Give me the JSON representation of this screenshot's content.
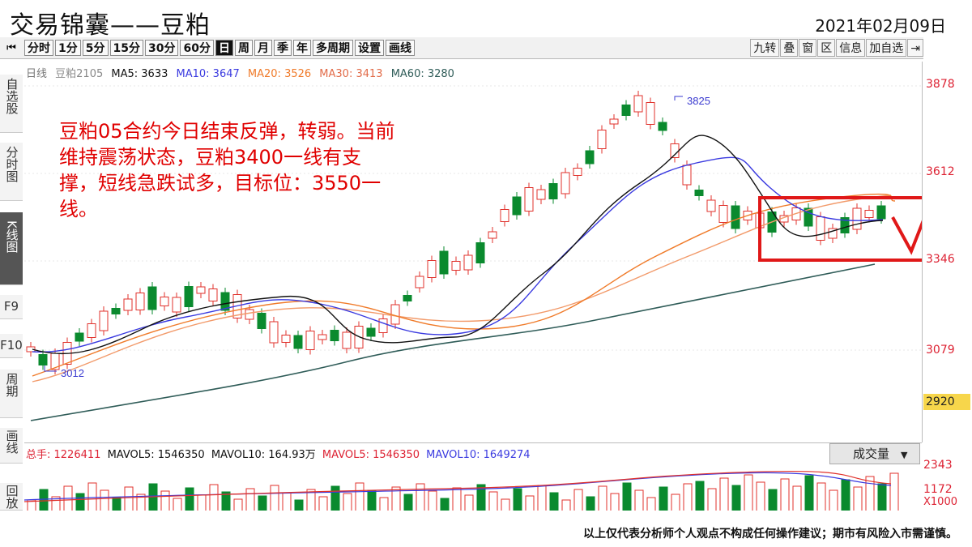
{
  "header": {
    "title": "交易锦囊——豆粕",
    "date": "2021年02月09日"
  },
  "toolbar": {
    "periods": [
      "分时",
      "1分",
      "5分",
      "15分",
      "30分",
      "60分",
      "日",
      "周",
      "月",
      "季",
      "年",
      "多周期",
      "设置",
      "画线"
    ],
    "active_period": "日",
    "right_buttons": [
      "九转",
      "叠",
      "窗",
      "区",
      "信息",
      "加自选"
    ]
  },
  "left_tabs": [
    "自选股",
    "分时图",
    "K线图",
    "F9",
    "F10",
    "周期",
    "画线",
    "回放"
  ],
  "ma_line": {
    "period": "日线",
    "symbol": "豆粕2105",
    "ma5": "MA5: 3633",
    "ma10": "MA10: 3647",
    "ma20": "MA20: 3526",
    "ma30": "MA30: 3413",
    "ma60": "MA60: 3280"
  },
  "annotation": "豆粕05合约今日结束反弹，转弱。当前维持震荡状态，豆粕3400一线有支撑，短线急跌试多，目标位：3550一线。",
  "price_axis": {
    "top": "3878",
    "mid1": "3612",
    "mid2": "3346",
    "low": "3079",
    "current": "2920"
  },
  "marks": {
    "high": "3825",
    "low": "3012"
  },
  "volume": {
    "zongshou": "总手: 1226411",
    "mavol5a": "MAVOL5: 1546350",
    "mavol10a": "MAVOL10: 164.93万",
    "mavol5b": "MAVOL5: 1546350",
    "mavol10b": "MAVOL10: 1649274",
    "selector": "成交量",
    "ax_top": "2343",
    "ax_mid": "1172",
    "ax_unit": "X1000"
  },
  "footer": {
    "disclaimer": "以上仅代表分析师个人观点不构成任何操作建议；期市有风险入市需谨慎。"
  },
  "colors": {
    "up": "#e0312b",
    "down": "#0a8a2e",
    "ma5": "#111111",
    "ma10": "#3a3ae0",
    "ma20": "#f07b2a",
    "ma30": "#f29a6a",
    "ma60": "#2f5c58",
    "annotation_box": "#e01818"
  }
}
